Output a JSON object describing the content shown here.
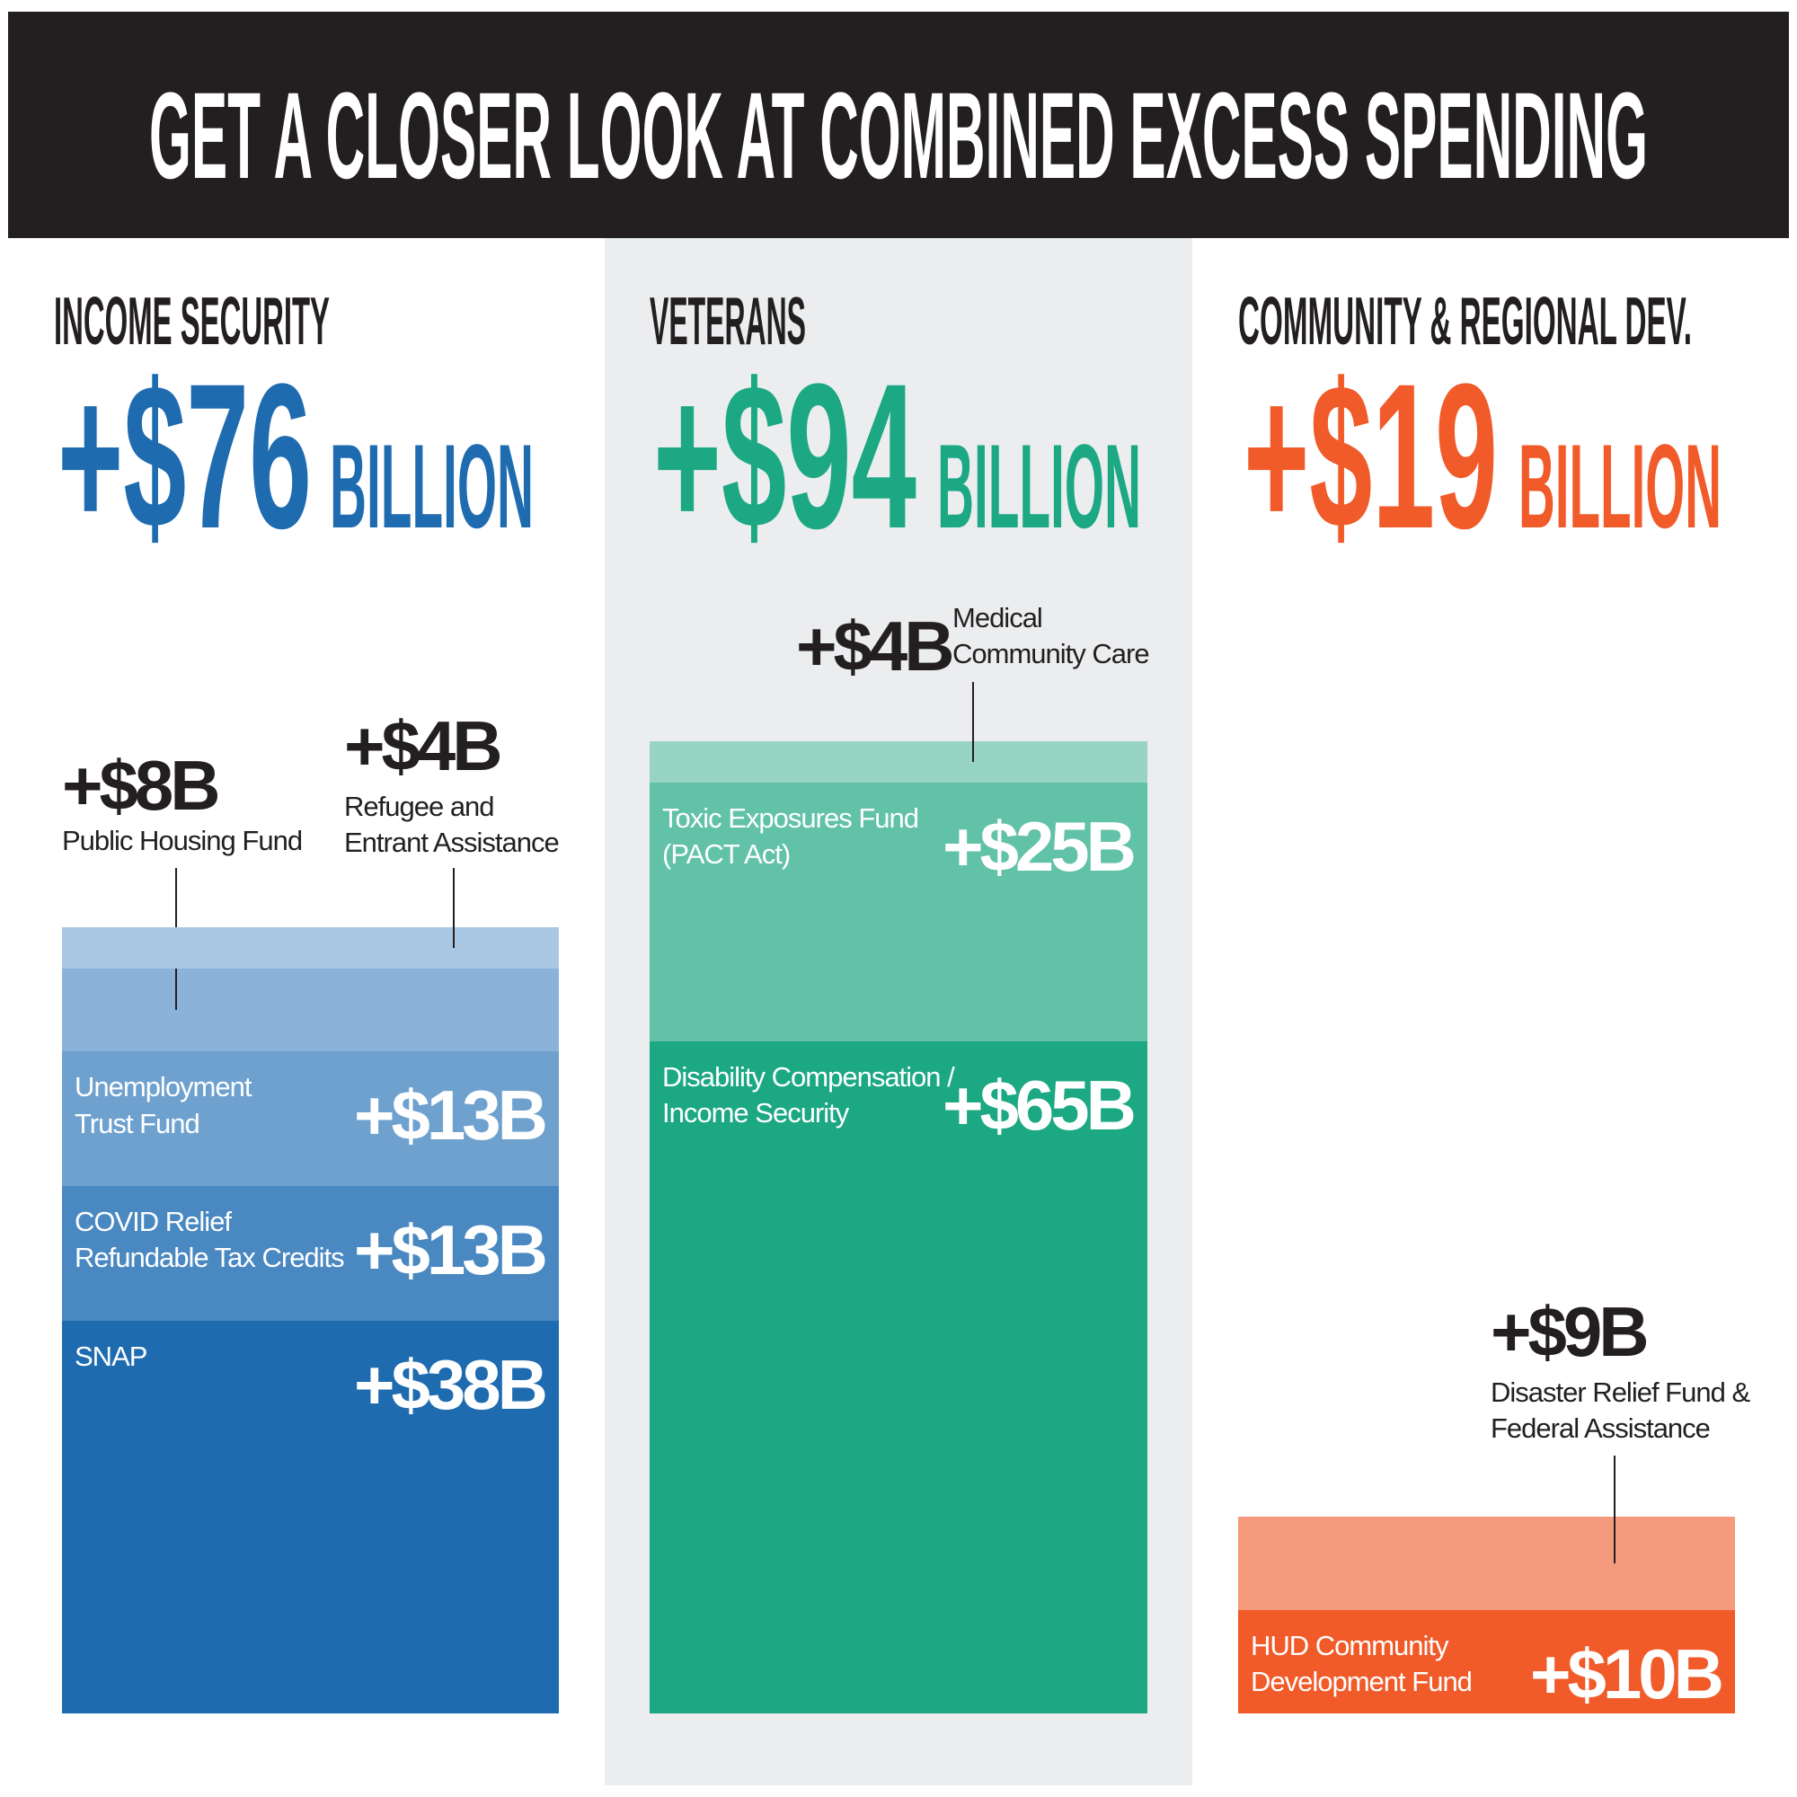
{
  "title": "GET A CLOSER LOOK AT COMBINED EXCESS SPENDING",
  "chart_data": [
    {
      "type": "stacked-bar",
      "title": "INCOME SECURITY",
      "total_label": "+$76",
      "unit": "BILLION",
      "color": "#1f6bb0",
      "ylim": [
        0,
        94
      ],
      "series": [
        {
          "name": "SNAP",
          "color": "#1f6bb0",
          "values": [
            38
          ],
          "value_labels": [
            "+$38B"
          ]
        },
        {
          "name": "COVID Relief Refundable Tax Credits",
          "color": "#4a88c2",
          "values": [
            13
          ],
          "value_labels": [
            "+$13B"
          ]
        },
        {
          "name": "Unemployment Trust Fund",
          "color": "#6fa1cf",
          "values": [
            13
          ],
          "value_labels": [
            "+$13B"
          ]
        },
        {
          "name": "Public Housing Fund",
          "color": "#8bb3d9",
          "values": [
            8
          ],
          "value_labels": [
            "+$8B"
          ]
        },
        {
          "name": "Refugee and Entrant Assistance",
          "color": "#a9c6e3",
          "values": [
            4
          ],
          "value_labels": [
            "+$4B"
          ]
        }
      ]
    },
    {
      "type": "stacked-bar",
      "title": "VETERANS",
      "total_label": "+$94",
      "unit": "BILLION",
      "color": "#1ba882",
      "ylim": [
        0,
        94
      ],
      "series": [
        {
          "name": "Disability Compensation / Income Security",
          "color": "#1ba882",
          "values": [
            65
          ],
          "value_labels": [
            "+$65B"
          ]
        },
        {
          "name": "Toxic Exposures Fund (PACT Act)",
          "color": "#62c2a7",
          "values": [
            25
          ],
          "value_labels": [
            "+$25B"
          ]
        },
        {
          "name": "Medical Community Care",
          "color": "#97d5c2",
          "values": [
            4
          ],
          "value_labels": [
            "+$4B"
          ]
        }
      ]
    },
    {
      "type": "stacked-bar",
      "title": "COMMUNITY & REGIONAL DEV.",
      "total_label": "+$19",
      "unit": "BILLION",
      "color": "#f15a29",
      "ylim": [
        0,
        94
      ],
      "series": [
        {
          "name": "HUD Community Development Fund",
          "color": "#f15a29",
          "values": [
            10
          ],
          "value_labels": [
            "+$10B"
          ]
        },
        {
          "name": "Disaster Relief Fund & Federal Assistance",
          "color": "#f59a7d",
          "values": [
            9
          ],
          "value_labels": [
            "+$9B"
          ]
        }
      ]
    }
  ]
}
